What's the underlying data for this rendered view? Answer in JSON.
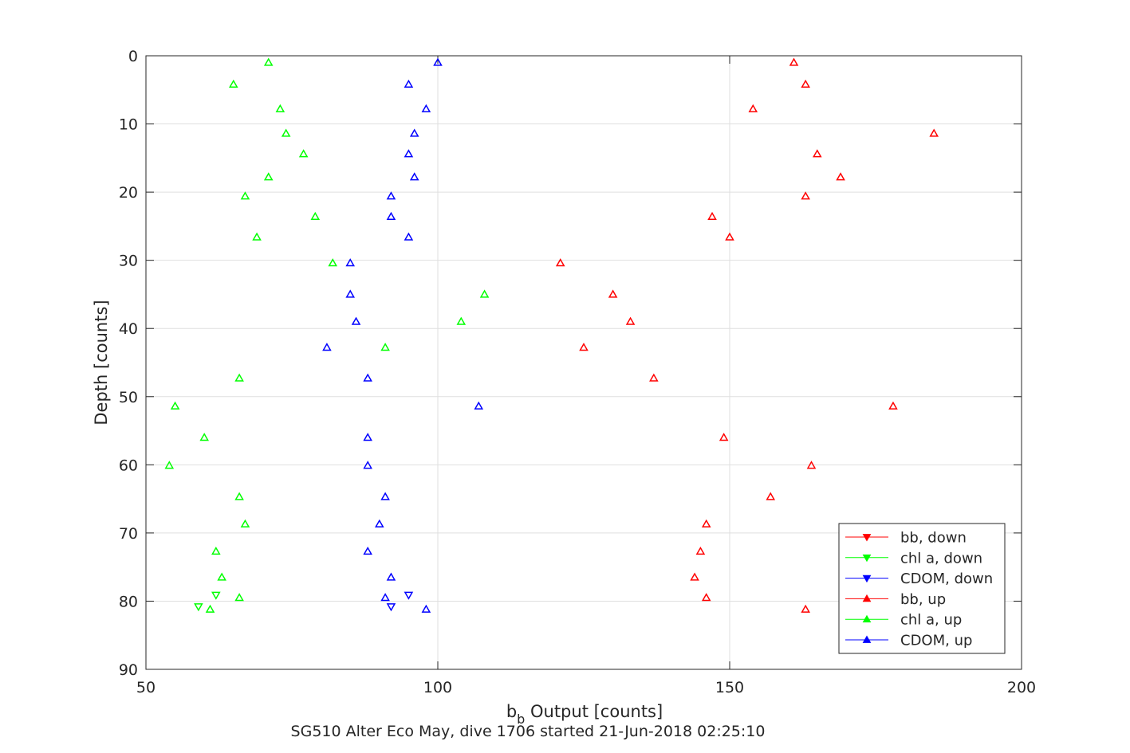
{
  "chart_data": {
    "type": "scatter",
    "xlim": [
      50,
      200
    ],
    "ylim": [
      0,
      90
    ],
    "y_reversed": true,
    "grid": true,
    "xticks": [
      50,
      100,
      150,
      200
    ],
    "yticks": [
      0,
      10,
      20,
      30,
      40,
      50,
      60,
      70,
      80,
      90
    ],
    "xlabel_main": "b",
    "xlabel_sub": "b",
    "xlabel_rest": " Output [counts]",
    "ylabel": "Depth [counts]",
    "caption": "SG510 Alter Eco May, dive 1706 started 21-Jun-2018 02:25:10",
    "legend_position": "bottom-right",
    "series": [
      {
        "name": "bb, down",
        "color": "#ff0000",
        "marker": "triangle-down",
        "points": []
      },
      {
        "name": "chl a, down",
        "color": "#00ff00",
        "marker": "triangle-down",
        "points": [
          [
            59,
            80.8
          ],
          [
            62,
            79.1
          ]
        ]
      },
      {
        "name": "CDOM, down",
        "color": "#0000ff",
        "marker": "triangle-down",
        "points": [
          [
            92,
            80.8
          ],
          [
            95,
            79.1
          ]
        ]
      },
      {
        "name": "bb, up",
        "color": "#ff0000",
        "marker": "triangle-up",
        "points": [
          [
            161,
            1.0
          ],
          [
            163,
            4.2
          ],
          [
            154,
            7.8
          ],
          [
            185,
            11.4
          ],
          [
            165,
            14.4
          ],
          [
            169,
            17.8
          ],
          [
            163,
            20.6
          ],
          [
            147,
            23.6
          ],
          [
            150,
            26.6
          ],
          [
            121,
            30.4
          ],
          [
            130,
            35.0
          ],
          [
            133,
            39.0
          ],
          [
            125,
            42.8
          ],
          [
            137,
            47.3
          ],
          [
            178,
            51.4
          ],
          [
            149,
            56.0
          ],
          [
            164,
            60.1
          ],
          [
            157,
            64.7
          ],
          [
            146,
            68.7
          ],
          [
            145,
            72.7
          ],
          [
            144,
            76.5
          ],
          [
            146,
            79.5
          ],
          [
            163,
            81.2
          ]
        ]
      },
      {
        "name": "chl a, up",
        "color": "#00ff00",
        "marker": "triangle-up",
        "points": [
          [
            71,
            1.0
          ],
          [
            65,
            4.2
          ],
          [
            73,
            7.8
          ],
          [
            74,
            11.4
          ],
          [
            77,
            14.4
          ],
          [
            71,
            17.8
          ],
          [
            67,
            20.6
          ],
          [
            79,
            23.6
          ],
          [
            69,
            26.6
          ],
          [
            82,
            30.4
          ],
          [
            108,
            35.0
          ],
          [
            104,
            39.0
          ],
          [
            91,
            42.8
          ],
          [
            66,
            47.3
          ],
          [
            55,
            51.4
          ],
          [
            60,
            56.0
          ],
          [
            54,
            60.1
          ],
          [
            66,
            64.7
          ],
          [
            67,
            68.7
          ],
          [
            62,
            72.7
          ],
          [
            63,
            76.5
          ],
          [
            66,
            79.5
          ],
          [
            61,
            81.2
          ]
        ]
      },
      {
        "name": "CDOM, up",
        "color": "#0000ff",
        "marker": "triangle-up",
        "points": [
          [
            100,
            1.0
          ],
          [
            95,
            4.2
          ],
          [
            98,
            7.8
          ],
          [
            96,
            11.4
          ],
          [
            95,
            14.4
          ],
          [
            96,
            17.8
          ],
          [
            92,
            20.6
          ],
          [
            92,
            23.6
          ],
          [
            95,
            26.6
          ],
          [
            85,
            30.4
          ],
          [
            85,
            35.0
          ],
          [
            86,
            39.0
          ],
          [
            81,
            42.8
          ],
          [
            88,
            47.3
          ],
          [
            107,
            51.4
          ],
          [
            88,
            56.0
          ],
          [
            88,
            60.1
          ],
          [
            91,
            64.7
          ],
          [
            90,
            68.7
          ],
          [
            88,
            72.7
          ],
          [
            92,
            76.5
          ],
          [
            91,
            79.5
          ],
          [
            98,
            81.2
          ]
        ]
      }
    ]
  }
}
